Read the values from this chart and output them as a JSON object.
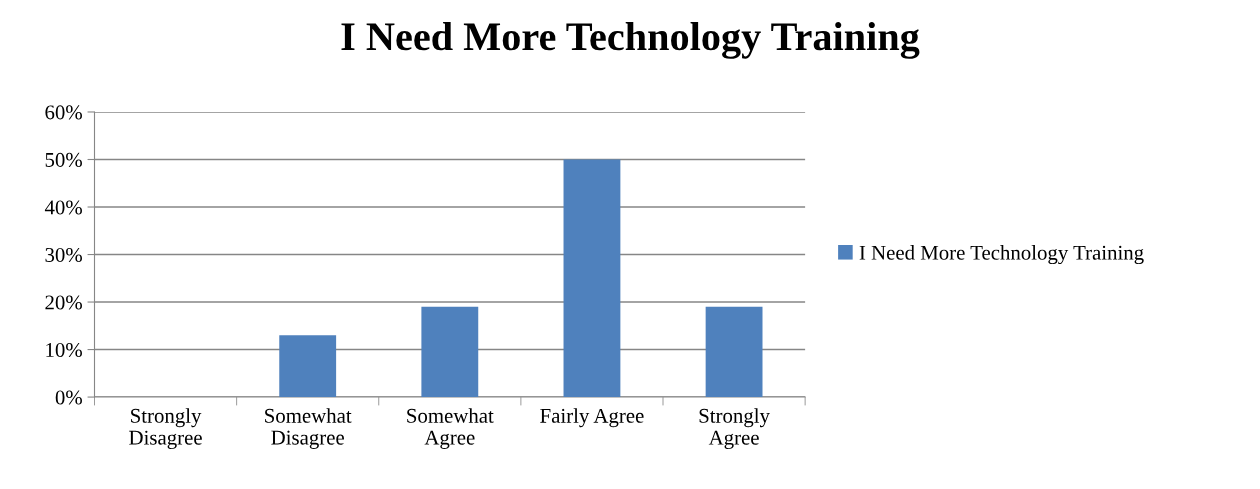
{
  "chart_data": {
    "type": "bar",
    "title": "I Need More Technology Training",
    "categories": [
      "Strongly\nDisagree",
      "Somewhat\nDisagree",
      "Somewhat\nAgree",
      "Fairly Agree",
      "Strongly\nAgree"
    ],
    "series": [
      {
        "name": "I Need More Technology Training",
        "color": "#4f81bd",
        "values": [
          0,
          13,
          19,
          50,
          19
        ]
      }
    ],
    "ylim": [
      0,
      60
    ],
    "yticks": [
      {
        "value": 0,
        "label": "0%"
      },
      {
        "value": 10,
        "label": "10%"
      },
      {
        "value": 20,
        "label": "20%"
      },
      {
        "value": 30,
        "label": "30%"
      },
      {
        "value": 40,
        "label": "40%"
      },
      {
        "value": 50,
        "label": "50%"
      },
      {
        "value": 60,
        "label": "60%"
      }
    ],
    "grid": "y",
    "legend": "right"
  }
}
